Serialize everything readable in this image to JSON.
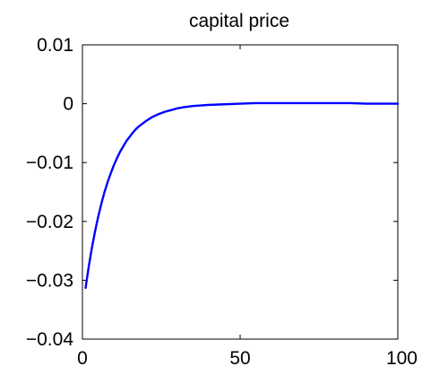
{
  "chart_data": {
    "type": "line",
    "title": "capital price",
    "xlabel": "",
    "ylabel": "",
    "xlim": [
      0,
      100
    ],
    "ylim": [
      -0.04,
      0.01
    ],
    "x_ticks": [
      0,
      50,
      100
    ],
    "x_tick_labels": [
      "0",
      "50",
      "100"
    ],
    "y_ticks": [
      0.01,
      0,
      -0.01,
      -0.02,
      -0.03,
      -0.04
    ],
    "y_tick_labels": [
      "0.01",
      "0",
      "−0.01",
      "−0.02",
      "−0.03",
      "−0.04"
    ],
    "grid": false,
    "legend": "none",
    "colors": {
      "line": "#0000ff",
      "axes": "#000000",
      "background": "#ffffff"
    },
    "series": [
      {
        "x": [
          1,
          2,
          3,
          4,
          5,
          6,
          7,
          8,
          9,
          10,
          11,
          12,
          13,
          14,
          15,
          16,
          17,
          18,
          19,
          20,
          22,
          24,
          26,
          28,
          30,
          32,
          35,
          40,
          45,
          50,
          55,
          60,
          65,
          70,
          75,
          80,
          85,
          90,
          95,
          100
        ],
        "values": [
          -0.0313,
          -0.0277,
          -0.0245,
          -0.0217,
          -0.0192,
          -0.017,
          -0.015,
          -0.0133,
          -0.0118,
          -0.0104,
          -0.0092,
          -0.0081,
          -0.0072,
          -0.0063,
          -0.0056,
          -0.0049,
          -0.0043,
          -0.0038,
          -0.0034,
          -0.003,
          -0.0023,
          -0.0018,
          -0.0014,
          -0.0011,
          -0.0008,
          -0.0006,
          -0.0004,
          -0.0002,
          -0.0001,
          0.0,
          0.0001,
          0.0001,
          0.0001,
          0.0001,
          0.0001,
          0.0001,
          0.0001,
          0.0,
          0.0,
          0.0
        ]
      }
    ]
  }
}
